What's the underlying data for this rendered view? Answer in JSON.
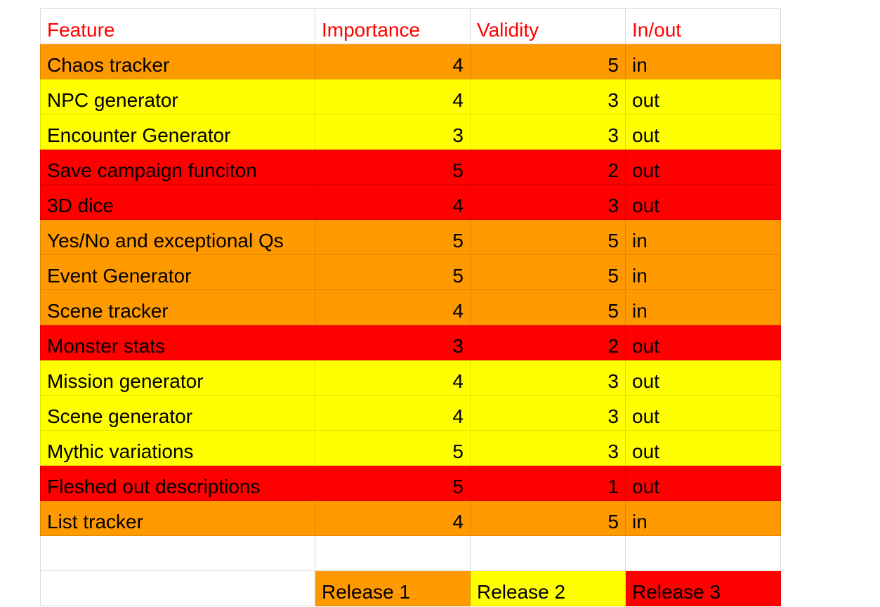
{
  "header": [
    "Feature",
    "Importance",
    "Validity",
    "In/out"
  ],
  "rows": [
    {
      "feature": "Chaos tracker",
      "importance": "4",
      "validity": "5",
      "inout": "in",
      "release": 1
    },
    {
      "feature": "NPC generator",
      "importance": "4",
      "validity": "3",
      "inout": "out",
      "release": 2
    },
    {
      "feature": "Encounter Generator",
      "importance": "3",
      "validity": "3",
      "inout": "out",
      "release": 2
    },
    {
      "feature": "Save campaign funciton",
      "importance": "5",
      "validity": "2",
      "inout": "out",
      "release": 3
    },
    {
      "feature": "3D dice",
      "importance": "4",
      "validity": "3",
      "inout": "out",
      "release": 3
    },
    {
      "feature": "Yes/No and exceptional Qs",
      "importance": "5",
      "validity": "5",
      "inout": "in",
      "release": 1
    },
    {
      "feature": "Event Generator",
      "importance": "5",
      "validity": "5",
      "inout": "in",
      "release": 1
    },
    {
      "feature": "Scene tracker",
      "importance": "4",
      "validity": "5",
      "inout": "in",
      "release": 1
    },
    {
      "feature": "Monster stats",
      "importance": "3",
      "validity": "2",
      "inout": "out",
      "release": 3
    },
    {
      "feature": "Mission generator",
      "importance": "4",
      "validity": "3",
      "inout": "out",
      "release": 2
    },
    {
      "feature": "Scene generator",
      "importance": "4",
      "validity": "3",
      "inout": "out",
      "release": 2
    },
    {
      "feature": "Mythic variations",
      "importance": "5",
      "validity": "3",
      "inout": "out",
      "release": 2
    },
    {
      "feature": "Fleshed out descriptions",
      "importance": "5",
      "validity": "1",
      "inout": "out",
      "release": 3
    },
    {
      "feature": "List tracker",
      "importance": "4",
      "validity": "5",
      "inout": "in",
      "release": 1
    }
  ],
  "legend": [
    "Release 1",
    "Release 2",
    "Release 3"
  ],
  "colors": {
    "header_text": "#ff0000",
    "release_1": "#ff9900",
    "release_2": "#ffff00",
    "release_3": "#ff0000",
    "grid": "#d9d9d9"
  }
}
